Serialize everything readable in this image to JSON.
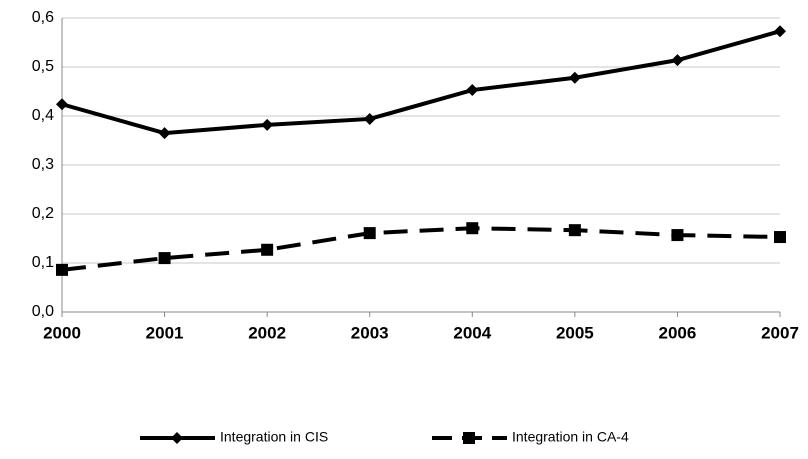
{
  "chart_data": {
    "type": "line",
    "categories": [
      "2000",
      "2001",
      "2002",
      "2003",
      "2004",
      "2005",
      "2006",
      "2007"
    ],
    "series": [
      {
        "name": "Integration in CIS",
        "color": "#000000",
        "line_style": "solid",
        "marker": "diamond",
        "values": [
          0.424,
          0.365,
          0.382,
          0.394,
          0.453,
          0.478,
          0.514,
          0.573
        ]
      },
      {
        "name": "Integration in CA-4",
        "color": "#000000",
        "line_style": "dashed",
        "marker": "square",
        "values": [
          0.086,
          0.11,
          0.127,
          0.161,
          0.171,
          0.167,
          0.157,
          0.153
        ]
      }
    ],
    "ylim": [
      0,
      0.6
    ],
    "yticks": [
      {
        "value": 0,
        "label": "0,0"
      },
      {
        "value": 0.1,
        "label": "0,1"
      },
      {
        "value": 0.2,
        "label": "0,2"
      },
      {
        "value": 0.3,
        "label": "0,3"
      },
      {
        "value": 0.4,
        "label": "0,4"
      },
      {
        "value": 0.5,
        "label": "0,5"
      },
      {
        "value": 0.6,
        "label": "0,6"
      }
    ],
    "grid": true,
    "legend": "bottom"
  }
}
